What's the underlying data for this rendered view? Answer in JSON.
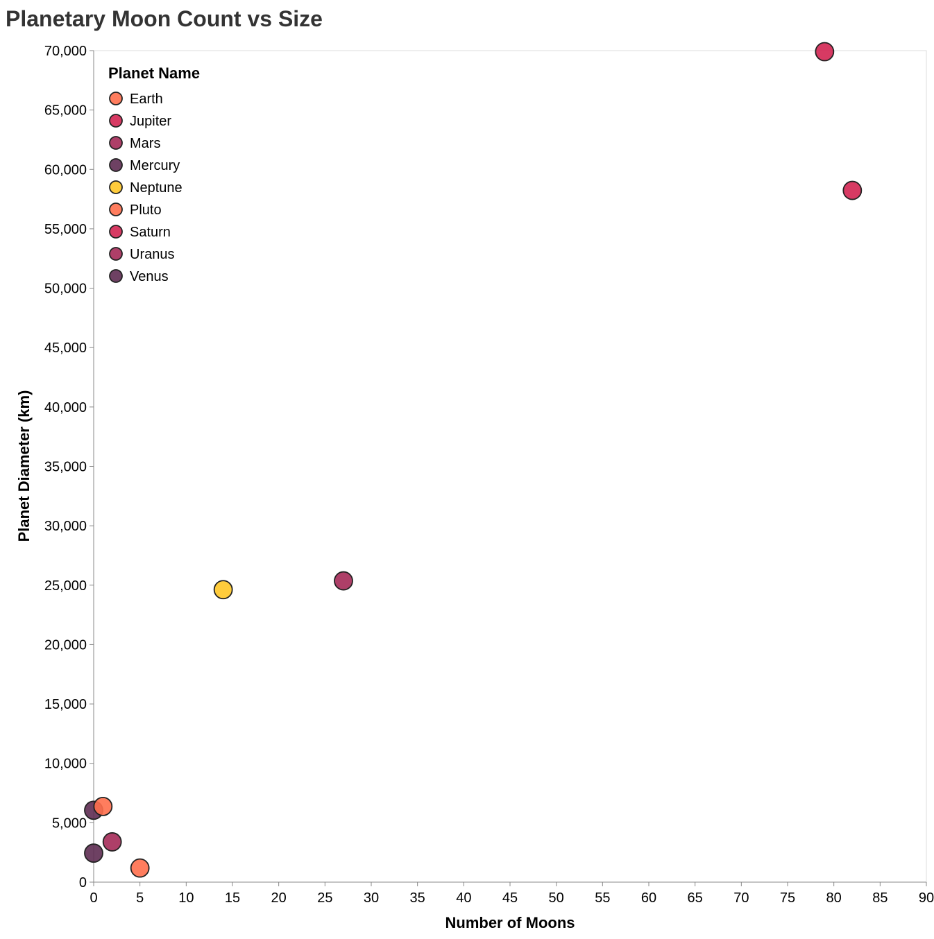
{
  "chart_data": {
    "type": "scatter",
    "title": "Planetary Moon Count vs Size",
    "xlabel": "Number of Moons",
    "ylabel": "Planet Diameter (km)",
    "xlim": [
      0,
      90
    ],
    "ylim": [
      0,
      70000
    ],
    "x_ticks": [
      0,
      5,
      10,
      15,
      20,
      25,
      30,
      35,
      40,
      45,
      50,
      55,
      60,
      65,
      70,
      75,
      80,
      85,
      90
    ],
    "y_ticks": [
      0,
      5000,
      10000,
      15000,
      20000,
      25000,
      30000,
      35000,
      40000,
      45000,
      50000,
      55000,
      60000,
      65000,
      70000
    ],
    "x_tick_labels": [
      "0",
      "5",
      "10",
      "15",
      "20",
      "25",
      "30",
      "35",
      "40",
      "45",
      "50",
      "55",
      "60",
      "65",
      "70",
      "75",
      "80",
      "85",
      "90"
    ],
    "y_tick_labels": [
      "0",
      "5,000",
      "10,000",
      "15,000",
      "20,000",
      "25,000",
      "30,000",
      "35,000",
      "40,000",
      "45,000",
      "50,000",
      "55,000",
      "60,000",
      "65,000",
      "70,000"
    ],
    "grid": false,
    "legend": {
      "title": "Planet Name",
      "placement": "top-left-inside",
      "entries": [
        {
          "name": "Earth",
          "color": "#ff6f4c"
        },
        {
          "name": "Jupiter",
          "color": "#d32552"
        },
        {
          "name": "Mars",
          "color": "#a52a58"
        },
        {
          "name": "Mercury",
          "color": "#5e2c52"
        },
        {
          "name": "Neptune",
          "color": "#ffc627"
        },
        {
          "name": "Pluto",
          "color": "#ff6f4c"
        },
        {
          "name": "Saturn",
          "color": "#d32552"
        },
        {
          "name": "Uranus",
          "color": "#a52a58"
        },
        {
          "name": "Venus",
          "color": "#5e2c52"
        }
      ]
    },
    "series": [
      {
        "name": "Mercury",
        "x": 0,
        "y": 2440,
        "color": "#5e2c52"
      },
      {
        "name": "Venus",
        "x": 0,
        "y": 6052,
        "color": "#5e2c52"
      },
      {
        "name": "Earth",
        "x": 1,
        "y": 6371,
        "color": "#ff6f4c"
      },
      {
        "name": "Mars",
        "x": 2,
        "y": 3390,
        "color": "#a52a58"
      },
      {
        "name": "Jupiter",
        "x": 79,
        "y": 69911,
        "color": "#d32552"
      },
      {
        "name": "Saturn",
        "x": 82,
        "y": 58232,
        "color": "#d32552"
      },
      {
        "name": "Uranus",
        "x": 27,
        "y": 25362,
        "color": "#a52a58"
      },
      {
        "name": "Neptune",
        "x": 14,
        "y": 24622,
        "color": "#ffc627"
      },
      {
        "name": "Pluto",
        "x": 5,
        "y": 1188,
        "color": "#ff6f4c"
      }
    ]
  }
}
